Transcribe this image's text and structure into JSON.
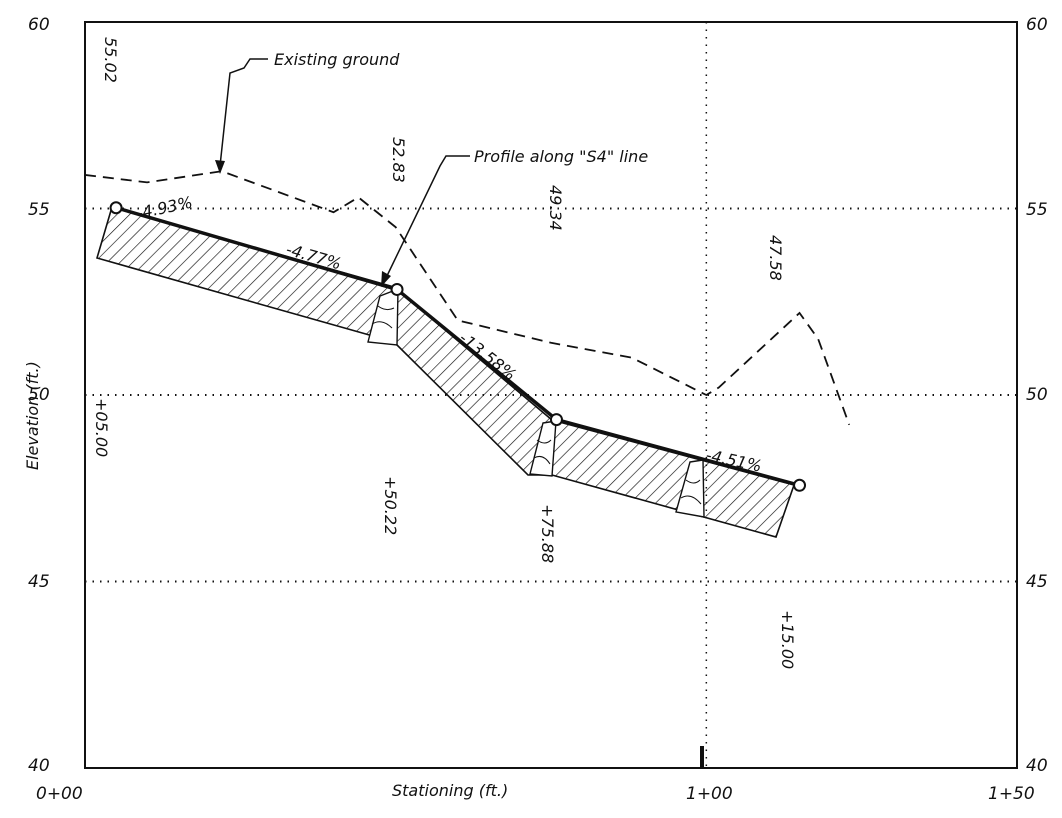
{
  "colors": {
    "ink": "#111111",
    "background": "#ffffff"
  },
  "axes": {
    "x_title": "Stationing (ft.)",
    "y_title": "Elevation (ft.)",
    "x_ticks_bottom": [
      "0+00",
      "1+00",
      "1+50"
    ],
    "y_ticks_left": [
      "40",
      "45",
      "50",
      "55",
      "60"
    ],
    "y_ticks_right": [
      "40",
      "45",
      "50",
      "55",
      "60"
    ],
    "x_range_ft": [
      0,
      150
    ],
    "y_range_ft": [
      40,
      60
    ],
    "grid": "dotted at every 5 ft elevation and at station 1+00"
  },
  "annotations": {
    "existing_ground": "Existing ground",
    "profile_line": "Profile along \"S4\" line"
  },
  "grades": [
    "-4.93%",
    "-4.77%",
    "-13.58%",
    "-4.51%"
  ],
  "point_elevations": [
    "55.02",
    "52.83",
    "49.34",
    "47.58"
  ],
  "point_stations": [
    "+05.00",
    "+50.22",
    "+75.88",
    "+15.00"
  ],
  "chart_data": {
    "type": "line",
    "xlabel": "Stationing (ft.)",
    "ylabel": "Elevation (ft.)",
    "xlim": [
      0,
      150
    ],
    "ylim": [
      40,
      60
    ],
    "grid": true,
    "series": [
      {
        "name": "Profile along \"S4\" line",
        "x": [
          5.0,
          50.22,
          75.88,
          115.0
        ],
        "y": [
          55.02,
          52.83,
          49.34,
          47.58
        ]
      },
      {
        "name": "Existing ground",
        "x": [
          0,
          10,
          22,
          40,
          44,
          50,
          60,
          75,
          88,
          100,
          102,
          115,
          118,
          123
        ],
        "y": [
          55.9,
          55.7,
          56.0,
          54.9,
          55.3,
          54.5,
          52.0,
          51.4,
          51.0,
          50.0,
          50.2,
          52.2,
          51.5,
          49.2
        ]
      }
    ]
  }
}
